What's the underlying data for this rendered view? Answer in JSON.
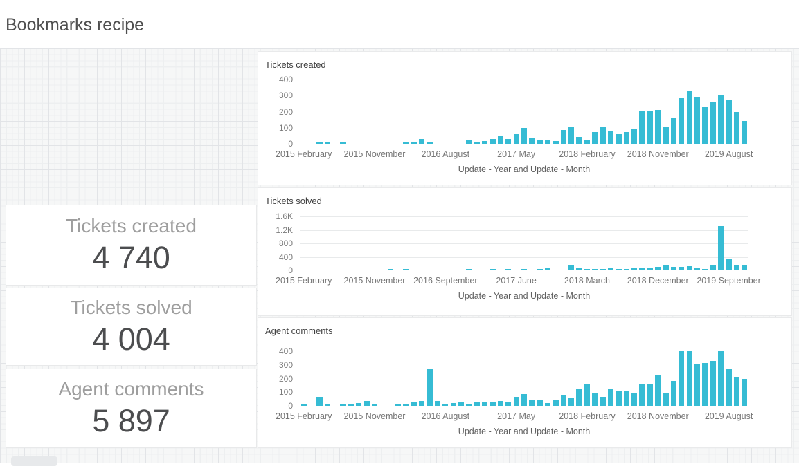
{
  "header": {
    "title": "Bookmarks recipe"
  },
  "kpis": [
    {
      "label": "Tickets created",
      "value": "4 740"
    },
    {
      "label": "Tickets solved",
      "value": "4 004"
    },
    {
      "label": "Agent comments",
      "value": "5 897"
    }
  ],
  "colors": {
    "bar": "#36bcd4",
    "canvas_bg": "#f6f7f7",
    "grid_major": "#e2e4e7",
    "grid_minor": "#edeff0",
    "card_border": "#e9eaeb",
    "kpi_label": "#9e9e9e",
    "kpi_value": "#4c4d4f",
    "axis_text": "#757575"
  },
  "chart_data": [
    {
      "type": "bar",
      "title": "Tickets created",
      "xlabel": "Update - Year and Update - Month",
      "ylim": [
        0,
        400
      ],
      "grid": true,
      "gridlines_visible": false,
      "legend_position": "none",
      "bar_color": "#36bcd4",
      "y_ticks": {
        "values": [
          0,
          100,
          200,
          300,
          400
        ],
        "labels": [
          "0",
          "100",
          "200",
          "300",
          "400"
        ]
      },
      "x_tick_indices": [
        0,
        9,
        18,
        27,
        36,
        45,
        54
      ],
      "x_tick_labels": [
        "2015 February",
        "2015 November",
        "2016 August",
        "2017 May",
        "2018 February",
        "2018 November",
        "2019 August"
      ],
      "categories": [
        "2015 February",
        "2015 March",
        "2015 April",
        "2015 May",
        "2015 June",
        "2015 July",
        "2015 August",
        "2015 September",
        "2015 October",
        "2015 November",
        "2015 December",
        "2016 January",
        "2016 February",
        "2016 March",
        "2016 April",
        "2016 May",
        "2016 June",
        "2016 July",
        "2016 August",
        "2016 September",
        "2016 October",
        "2016 November",
        "2016 December",
        "2017 January",
        "2017 February",
        "2017 March",
        "2017 April",
        "2017 May",
        "2017 June",
        "2017 July",
        "2017 August",
        "2017 September",
        "2017 October",
        "2017 November",
        "2017 December",
        "2018 January",
        "2018 February",
        "2018 March",
        "2018 April",
        "2018 May",
        "2018 June",
        "2018 July",
        "2018 August",
        "2018 September",
        "2018 October",
        "2018 November",
        "2018 December",
        "2019 January",
        "2019 February",
        "2019 March",
        "2019 April",
        "2019 May",
        "2019 June",
        "2019 July",
        "2019 August",
        "2019 September",
        "2019 October"
      ],
      "values": [
        0,
        0,
        8,
        5,
        0,
        6,
        0,
        0,
        0,
        0,
        0,
        0,
        0,
        4,
        6,
        31,
        8,
        0,
        0,
        0,
        0,
        27,
        15,
        17,
        32,
        51,
        32,
        61,
        99,
        35,
        25,
        23,
        17,
        86,
        107,
        43,
        26,
        73,
        108,
        80,
        62,
        75,
        90,
        205,
        208,
        209,
        106,
        164,
        286,
        332,
        291,
        227,
        262,
        306,
        271,
        199,
        141
      ]
    },
    {
      "type": "bar",
      "title": "Tickets solved",
      "xlabel": "Update - Year and Update - Month",
      "ylim": [
        0,
        1600
      ],
      "grid": true,
      "gridlines_visible": true,
      "legend_position": "none",
      "bar_color": "#36bcd4",
      "y_ticks": {
        "values": [
          0,
          400,
          800,
          1200,
          1600
        ],
        "labels": [
          "0",
          "400",
          "800",
          "1.2K",
          "1.6K"
        ]
      },
      "x_tick_indices": [
        0,
        9,
        18,
        27,
        36,
        45,
        54
      ],
      "x_tick_labels": [
        "2015 February",
        "2015 November",
        "2016 September",
        "2017 June",
        "2018 March",
        "2018 December",
        "2019 September"
      ],
      "categories": [
        "2015 February",
        "2015 March",
        "2015 April",
        "2015 May",
        "2015 June",
        "2015 July",
        "2015 August",
        "2015 September",
        "2015 October",
        "2015 November",
        "2015 December",
        "2016 February",
        "2016 March",
        "2016 April",
        "2016 May",
        "2016 June",
        "2016 July",
        "2016 August",
        "2016 September",
        "2016 October",
        "2016 November",
        "2016 December",
        "2017 January",
        "2017 February",
        "2017 March",
        "2017 April",
        "2017 May",
        "2017 June",
        "2017 July",
        "2017 August",
        "2017 September",
        "2017 October",
        "2017 November",
        "2017 December",
        "2018 January",
        "2018 February",
        "2018 March",
        "2018 April",
        "2018 May",
        "2018 June",
        "2018 July",
        "2018 August",
        "2018 September",
        "2018 October",
        "2018 November",
        "2018 December",
        "2019 January",
        "2019 February",
        "2019 March",
        "2019 April",
        "2019 May",
        "2019 June",
        "2019 July",
        "2019 August",
        "2019 September",
        "2019 October",
        "2019 November"
      ],
      "values": [
        0,
        0,
        0,
        0,
        0,
        0,
        0,
        0,
        0,
        0,
        0,
        25,
        0,
        35,
        0,
        0,
        0,
        0,
        0,
        0,
        0,
        30,
        0,
        0,
        25,
        0,
        45,
        0,
        40,
        0,
        33,
        53,
        0,
        0,
        150,
        67,
        40,
        33,
        33,
        53,
        40,
        20,
        80,
        90,
        60,
        110,
        150,
        95,
        95,
        130,
        75,
        50,
        160,
        1320,
        330,
        170,
        140
      ]
    },
    {
      "type": "bar",
      "title": "Agent comments",
      "xlabel": "Update - Year and Update - Month",
      "ylim": [
        0,
        400
      ],
      "grid": true,
      "gridlines_visible": false,
      "legend_position": "none",
      "bar_color": "#36bcd4",
      "y_ticks": {
        "values": [
          0,
          100,
          200,
          300,
          400
        ],
        "labels": [
          "0",
          "100",
          "200",
          "300",
          "400"
        ]
      },
      "x_tick_indices": [
        0,
        9,
        18,
        27,
        36,
        45,
        54
      ],
      "x_tick_labels": [
        "2015 February",
        "2015 November",
        "2016 August",
        "2017 May",
        "2018 February",
        "2018 November",
        "2019 August"
      ],
      "categories": [
        "2015 February",
        "2015 March",
        "2015 April",
        "2015 May",
        "2015 June",
        "2015 July",
        "2015 August",
        "2015 September",
        "2015 October",
        "2015 November",
        "2015 December",
        "2016 January",
        "2016 February",
        "2016 March",
        "2016 April",
        "2016 May",
        "2016 June",
        "2016 July",
        "2016 August",
        "2016 September",
        "2016 October",
        "2016 November",
        "2016 December",
        "2017 January",
        "2017 February",
        "2017 March",
        "2017 April",
        "2017 May",
        "2017 June",
        "2017 July",
        "2017 August",
        "2017 September",
        "2017 October",
        "2017 November",
        "2017 December",
        "2018 January",
        "2018 February",
        "2018 March",
        "2018 April",
        "2018 May",
        "2018 June",
        "2018 July",
        "2018 August",
        "2018 September",
        "2018 October",
        "2018 November",
        "2018 December",
        "2019 January",
        "2019 February",
        "2019 March",
        "2019 April",
        "2019 May",
        "2019 June",
        "2019 July",
        "2019 August",
        "2019 September",
        "2019 October"
      ],
      "values": [
        5,
        0,
        65,
        10,
        0,
        12,
        8,
        22,
        35,
        8,
        0,
        0,
        15,
        8,
        25,
        35,
        270,
        38,
        15,
        20,
        30,
        8,
        30,
        25,
        30,
        35,
        30,
        68,
        88,
        40,
        48,
        19,
        45,
        80,
        56,
        122,
        162,
        90,
        68,
        122,
        110,
        106,
        90,
        163,
        155,
        228,
        90,
        182,
        398,
        398,
        306,
        312,
        328,
        402,
        272,
        213,
        197
      ]
    }
  ]
}
